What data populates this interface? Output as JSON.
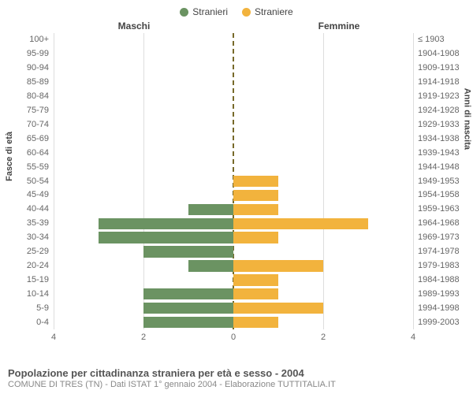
{
  "legend": {
    "male": {
      "label": "Stranieri",
      "color": "#6b9362"
    },
    "female": {
      "label": "Straniere",
      "color": "#f2b33d"
    }
  },
  "column_titles": {
    "left": "Maschi",
    "right": "Femmine"
  },
  "yaxis_titles": {
    "left": "Fasce di età",
    "right": "Anni di nascita"
  },
  "xaxis": {
    "max": 4,
    "ticks": [
      4,
      2,
      0,
      2,
      4
    ]
  },
  "grid_color": "#dddddd",
  "center_line_color": "#776a2a",
  "text_color": "#666666",
  "background_color": "#ffffff",
  "bar_height_pct": 80,
  "rows": [
    {
      "age": "100+",
      "birth": "≤ 1903",
      "m": 0,
      "f": 0
    },
    {
      "age": "95-99",
      "birth": "1904-1908",
      "m": 0,
      "f": 0
    },
    {
      "age": "90-94",
      "birth": "1909-1913",
      "m": 0,
      "f": 0
    },
    {
      "age": "85-89",
      "birth": "1914-1918",
      "m": 0,
      "f": 0
    },
    {
      "age": "80-84",
      "birth": "1919-1923",
      "m": 0,
      "f": 0
    },
    {
      "age": "75-79",
      "birth": "1924-1928",
      "m": 0,
      "f": 0
    },
    {
      "age": "70-74",
      "birth": "1929-1933",
      "m": 0,
      "f": 0
    },
    {
      "age": "65-69",
      "birth": "1934-1938",
      "m": 0,
      "f": 0
    },
    {
      "age": "60-64",
      "birth": "1939-1943",
      "m": 0,
      "f": 0
    },
    {
      "age": "55-59",
      "birth": "1944-1948",
      "m": 0,
      "f": 0
    },
    {
      "age": "50-54",
      "birth": "1949-1953",
      "m": 0,
      "f": 1
    },
    {
      "age": "45-49",
      "birth": "1954-1958",
      "m": 0,
      "f": 1
    },
    {
      "age": "40-44",
      "birth": "1959-1963",
      "m": 1,
      "f": 1
    },
    {
      "age": "35-39",
      "birth": "1964-1968",
      "m": 3,
      "f": 3
    },
    {
      "age": "30-34",
      "birth": "1969-1973",
      "m": 3,
      "f": 1
    },
    {
      "age": "25-29",
      "birth": "1974-1978",
      "m": 2,
      "f": 0
    },
    {
      "age": "20-24",
      "birth": "1979-1983",
      "m": 1,
      "f": 2
    },
    {
      "age": "15-19",
      "birth": "1984-1988",
      "m": 0,
      "f": 1
    },
    {
      "age": "10-14",
      "birth": "1989-1993",
      "m": 2,
      "f": 1
    },
    {
      "age": "5-9",
      "birth": "1994-1998",
      "m": 2,
      "f": 2
    },
    {
      "age": "0-4",
      "birth": "1999-2003",
      "m": 2,
      "f": 1
    }
  ],
  "footer": {
    "title": "Popolazione per cittadinanza straniera per età e sesso - 2004",
    "subtitle": "COMUNE DI TRES (TN) - Dati ISTAT 1° gennaio 2004 - Elaborazione TUTTITALIA.IT"
  }
}
